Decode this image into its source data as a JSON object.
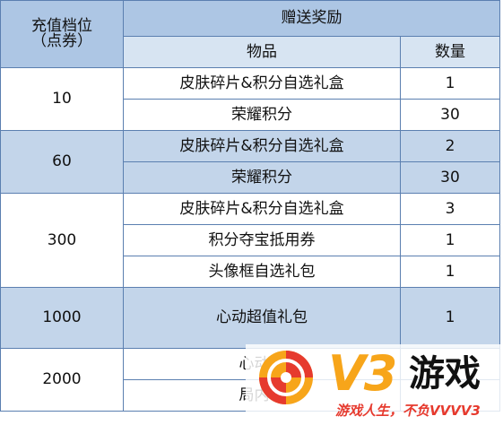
{
  "table": {
    "header": {
      "tier_line1": "充值档位",
      "tier_line2": "（点券）",
      "gift": "赠送奖励",
      "item": "物品",
      "quantity": "数量"
    },
    "rows": [
      {
        "tier": "10",
        "items": [
          {
            "name": "皮肤碎片&积分自选礼盒",
            "qty": "1"
          },
          {
            "name": "荣耀积分",
            "qty": "30"
          }
        ]
      },
      {
        "tier": "60",
        "items": [
          {
            "name": "皮肤碎片&积分自选礼盒",
            "qty": "2"
          },
          {
            "name": "荣耀积分",
            "qty": "30"
          }
        ]
      },
      {
        "tier": "300",
        "items": [
          {
            "name": "皮肤碎片&积分自选礼盒",
            "qty": "3"
          },
          {
            "name": "积分夺宝抵用券",
            "qty": "1"
          },
          {
            "name": "头像框自选礼包",
            "qty": "1"
          }
        ]
      },
      {
        "tier": "1000",
        "items": [
          {
            "name": "心动超值礼包",
            "qty": "1"
          }
        ]
      },
      {
        "tier": "2000",
        "items": [
          {
            "name": "心动豪",
            "qty": ""
          },
          {
            "name": "局内特",
            "qty": ""
          }
        ]
      }
    ]
  },
  "watermark": {
    "brand": "V3",
    "name": "游戏",
    "slogan": "游戏人生，不负VVVV3",
    "colors": {
      "orange": "#f7a51a",
      "red": "#e63a2e"
    }
  }
}
